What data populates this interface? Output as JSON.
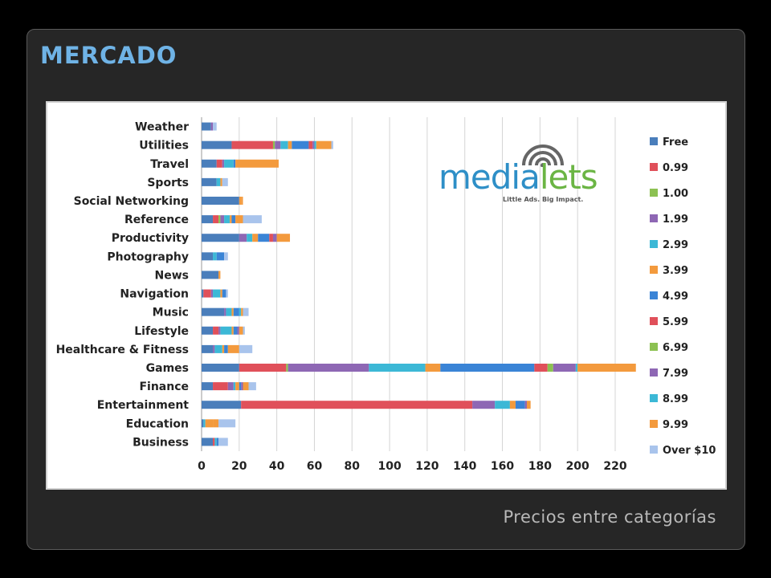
{
  "slide": {
    "title": "MERCADO",
    "caption": "Precios entre categorías"
  },
  "logo": {
    "word_blue": "media",
    "word_green": "lets",
    "tagline": "Little Ads. Big Impact."
  },
  "colors": {
    "title": "#6fb3e6",
    "panel": "#262626",
    "caption": "#b8b8b8"
  },
  "chart_data": {
    "type": "bar",
    "orientation": "horizontal",
    "stacked": true,
    "grid": true,
    "legend_position": "right",
    "xlim": [
      0,
      220
    ],
    "x_ticks": [
      0,
      20,
      40,
      60,
      80,
      100,
      120,
      140,
      160,
      180,
      200,
      220
    ],
    "categories": [
      "Weather",
      "Utilities",
      "Travel",
      "Sports",
      "Social Networking",
      "Reference",
      "Productivity",
      "Photography",
      "News",
      "Navigation",
      "Music",
      "Lifestyle",
      "Healthcare & Fitness",
      "Games",
      "Finance",
      "Entertainment",
      "Education",
      "Business"
    ],
    "series": [
      {
        "name": "Free",
        "color": "#4a7ebb",
        "values": [
          5,
          16,
          8,
          8,
          20,
          6,
          20,
          6,
          9,
          1,
          12,
          6,
          6,
          20,
          6,
          21,
          1,
          6
        ]
      },
      {
        "name": "0.99",
        "color": "#e0505a",
        "values": [
          0,
          22,
          3,
          0,
          0,
          3,
          0,
          0,
          0,
          4,
          0,
          3,
          0,
          25,
          8,
          123,
          0,
          1
        ]
      },
      {
        "name": "1.00",
        "color": "#8cc152",
        "values": [
          0,
          1,
          0,
          0,
          0,
          1,
          0,
          0,
          0,
          0,
          0,
          0,
          0,
          1,
          0,
          0,
          0,
          0
        ]
      },
      {
        "name": "1.99",
        "color": "#8e67b4",
        "values": [
          1,
          3,
          1,
          0,
          0,
          2,
          4,
          0,
          0,
          1,
          1,
          1,
          1,
          43,
          3,
          12,
          0,
          0
        ]
      },
      {
        "name": "2.99",
        "color": "#3cb8d6",
        "values": [
          0,
          4,
          5,
          2,
          0,
          3,
          3,
          2,
          0,
          4,
          3,
          6,
          4,
          30,
          1,
          8,
          1,
          1
        ]
      },
      {
        "name": "3.99",
        "color": "#f39a3d",
        "values": [
          0,
          2,
          0,
          1,
          1,
          1,
          3,
          0,
          1,
          1,
          1,
          1,
          1,
          8,
          2,
          3,
          4,
          0
        ]
      },
      {
        "name": "4.99",
        "color": "#3a84d6",
        "values": [
          0,
          9,
          1,
          0,
          0,
          2,
          6,
          4,
          0,
          2,
          3,
          2,
          2,
          50,
          1,
          5,
          0,
          1
        ]
      },
      {
        "name": "5.99",
        "color": "#e0505a",
        "values": [
          0,
          2,
          0,
          0,
          0,
          0,
          2,
          0,
          0,
          0,
          0,
          0,
          0,
          7,
          0,
          0,
          0,
          0
        ]
      },
      {
        "name": "6.99",
        "color": "#8cc152",
        "values": [
          0,
          0,
          0,
          0,
          0,
          0,
          0,
          0,
          0,
          0,
          0,
          0,
          0,
          3,
          0,
          0,
          0,
          0
        ]
      },
      {
        "name": "7.99",
        "color": "#8e67b4",
        "values": [
          0,
          1,
          0,
          0,
          0,
          0,
          2,
          0,
          0,
          0,
          0,
          1,
          0,
          12,
          1,
          1,
          0,
          0
        ]
      },
      {
        "name": "8.99",
        "color": "#3cb8d6",
        "values": [
          0,
          1,
          0,
          0,
          0,
          0,
          0,
          0,
          0,
          0,
          1,
          0,
          0,
          1,
          0,
          0,
          0,
          0
        ]
      },
      {
        "name": "9.99",
        "color": "#f39a3d",
        "values": [
          0,
          8,
          23,
          0,
          1,
          4,
          7,
          0,
          0,
          0,
          1,
          2,
          6,
          31,
          3,
          2,
          3,
          0
        ]
      },
      {
        "name": "Over $10",
        "color": "#a9c4ec",
        "values": [
          2,
          1,
          0,
          3,
          0,
          10,
          0,
          2,
          0,
          1,
          3,
          1,
          7,
          0,
          4,
          0,
          9,
          5
        ]
      }
    ]
  }
}
